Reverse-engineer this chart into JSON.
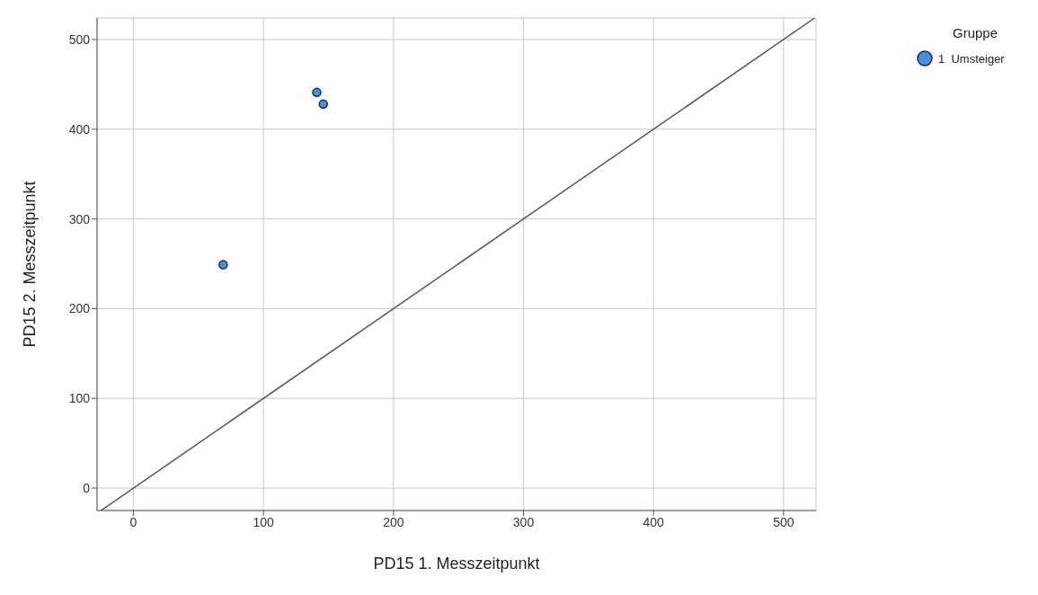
{
  "chart_data": {
    "type": "scatter",
    "xlabel": "PD15 1. Messzeitpunkt",
    "ylabel": "PD15  2. Messzeitpunkt",
    "legend_title": "Gruppe",
    "series": [
      {
        "name": "1  Umsteiger",
        "color": "#4a8fe0",
        "x": [
          69,
          141,
          146
        ],
        "values": [
          249,
          441,
          428
        ]
      },
      {
        "type": "line",
        "color": "#555555",
        "marker": "none",
        "x": [
          -25,
          524
        ],
        "values": [
          -25,
          524
        ]
      }
    ],
    "xlim": [
      -28,
      525
    ],
    "ylim": [
      -25,
      524
    ],
    "xticks": [
      0,
      100,
      200,
      300,
      400,
      500
    ],
    "yticks": [
      0,
      100,
      200,
      300,
      400,
      500
    ],
    "grid": true,
    "legend": "top right",
    "marker": "circle",
    "line_style": "solid"
  }
}
